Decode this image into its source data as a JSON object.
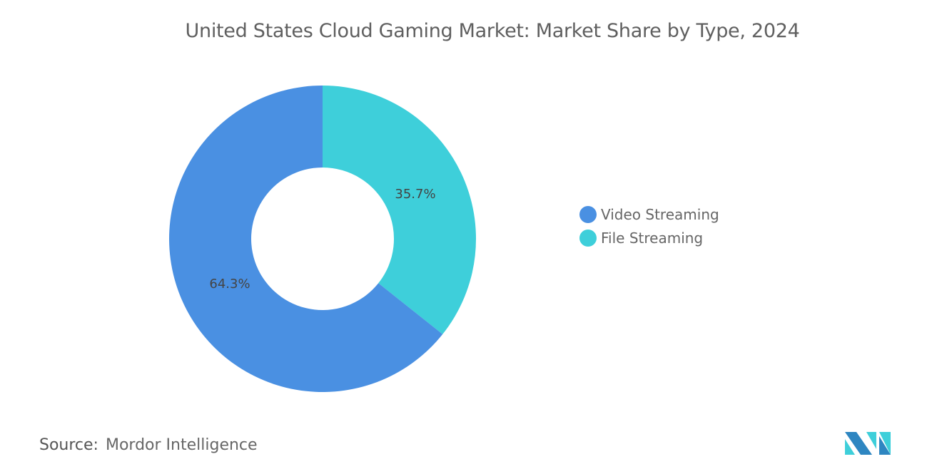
{
  "chart_data": {
    "type": "pie",
    "variant": "donut",
    "title": "United States Cloud Gaming Market: Market Share by Type, 2024",
    "series": [
      {
        "name": "File Streaming",
        "value": 35.7,
        "label": "35.7%",
        "color": "#3ECFDA"
      },
      {
        "name": "Video Streaming",
        "value": 64.3,
        "label": "64.3%",
        "color": "#4A90E2"
      }
    ],
    "legend": {
      "placement": "right",
      "items": [
        "Video Streaming",
        "File Streaming"
      ]
    }
  },
  "source": {
    "label": "Source:",
    "text": "Mordor Intelligence"
  },
  "logo": {
    "text": "Mordor Intelligence"
  }
}
